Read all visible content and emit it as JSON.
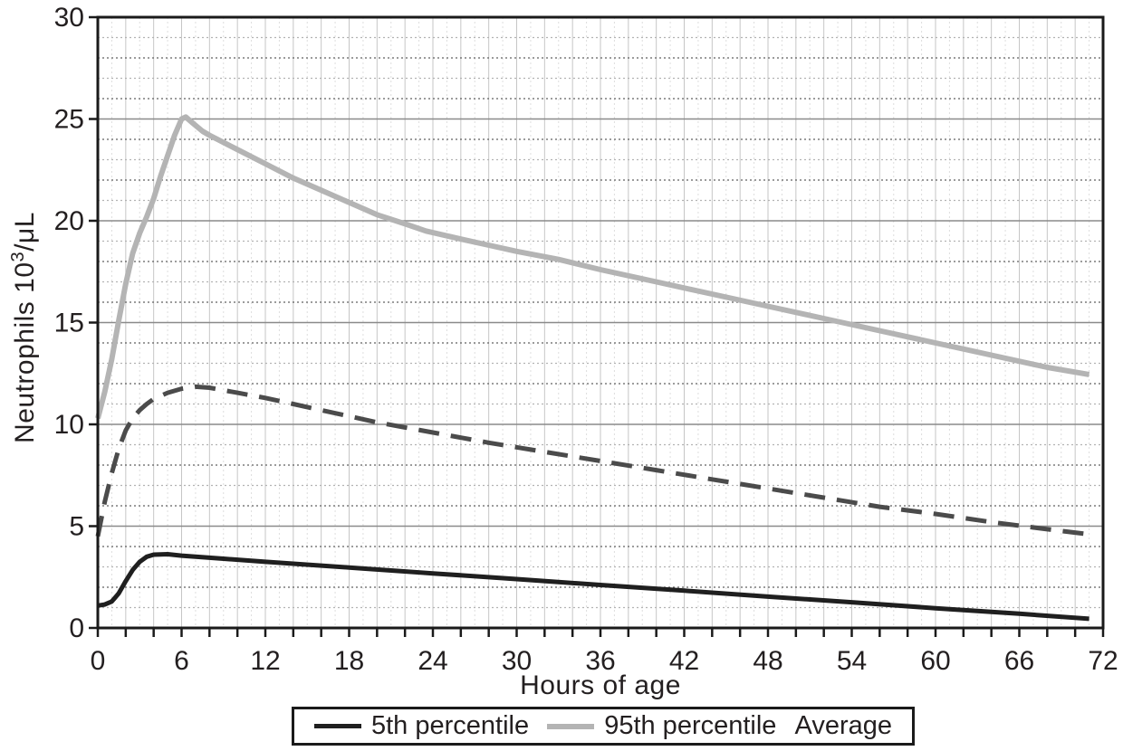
{
  "figure": {
    "background": "#ffffff"
  },
  "chart_data": {
    "type": "line",
    "title": "",
    "xlabel": "Hours of age",
    "ylabel": "Neutrophils 10³/μL",
    "ylabel_parts": {
      "prefix": "Neutrophils 10",
      "superscript": "3",
      "suffix": "/μL"
    },
    "xlim": [
      0,
      72
    ],
    "ylim": [
      0,
      30
    ],
    "x_tick_step": 2,
    "x_label_step": 6,
    "x_tick_labels": [
      "0",
      "6",
      "12",
      "18",
      "24",
      "30",
      "36",
      "42",
      "48",
      "54",
      "60",
      "66",
      "72"
    ],
    "y_tick_step": 5,
    "y_tick_labels": [
      "0",
      "5",
      "10",
      "15",
      "20",
      "25",
      "30"
    ],
    "grid": {
      "on": true,
      "major_color": "#8a8a8a",
      "minor_dark_color": "#606060",
      "minor_light_color": "#b3b3b3",
      "vertical_even_color": "#c6c6c6",
      "vertical_odd_color": "#dedede",
      "axis_color": "#1a1a1a"
    },
    "series": [
      {
        "name": "95th percentile",
        "color": "#b4b4b4",
        "style": "solid",
        "width": 6,
        "points": [
          [
            0,
            10.3
          ],
          [
            0.5,
            11.6
          ],
          [
            1,
            13.2
          ],
          [
            1.5,
            15.1
          ],
          [
            2,
            16.9
          ],
          [
            2.5,
            18.4
          ],
          [
            3,
            19.4
          ],
          [
            3.5,
            20.2
          ],
          [
            4,
            21.1
          ],
          [
            4.5,
            22.2
          ],
          [
            5,
            23.2
          ],
          [
            5.5,
            24.2
          ],
          [
            6,
            25.0
          ],
          [
            6.3,
            25.1
          ],
          [
            6.8,
            24.8
          ],
          [
            7.5,
            24.4
          ],
          [
            8,
            24.2
          ],
          [
            10,
            23.5
          ],
          [
            12,
            22.8
          ],
          [
            14,
            22.1
          ],
          [
            16,
            21.5
          ],
          [
            18,
            20.9
          ],
          [
            20,
            20.3
          ],
          [
            22,
            19.85
          ],
          [
            23.5,
            19.5
          ],
          [
            26,
            19.1
          ],
          [
            28,
            18.8
          ],
          [
            30,
            18.5
          ],
          [
            33,
            18.1
          ],
          [
            36,
            17.6
          ],
          [
            40,
            17.0
          ],
          [
            44,
            16.4
          ],
          [
            48,
            15.8
          ],
          [
            52,
            15.2
          ],
          [
            56,
            14.6
          ],
          [
            60,
            14.0
          ],
          [
            64,
            13.4
          ],
          [
            68,
            12.8
          ],
          [
            71,
            12.45
          ]
        ]
      },
      {
        "name": "Average",
        "color": "#4b4b4b",
        "style": "dashed",
        "width": 5,
        "points": [
          [
            0,
            4.5
          ],
          [
            0.5,
            6.2
          ],
          [
            1,
            7.6
          ],
          [
            1.5,
            8.8
          ],
          [
            2,
            9.7
          ],
          [
            2.5,
            10.3
          ],
          [
            3,
            10.7
          ],
          [
            3.5,
            11.0
          ],
          [
            4,
            11.25
          ],
          [
            5,
            11.55
          ],
          [
            6,
            11.75
          ],
          [
            7,
            11.85
          ],
          [
            8,
            11.8
          ],
          [
            10,
            11.55
          ],
          [
            12,
            11.3
          ],
          [
            14,
            11.0
          ],
          [
            16,
            10.7
          ],
          [
            18,
            10.4
          ],
          [
            20,
            10.1
          ],
          [
            22,
            9.85
          ],
          [
            24,
            9.6
          ],
          [
            28,
            9.1
          ],
          [
            32,
            8.65
          ],
          [
            36,
            8.2
          ],
          [
            40,
            7.75
          ],
          [
            44,
            7.3
          ],
          [
            48,
            6.85
          ],
          [
            52,
            6.4
          ],
          [
            56,
            5.95
          ],
          [
            60,
            5.6
          ],
          [
            64,
            5.2
          ],
          [
            68,
            4.85
          ],
          [
            71,
            4.6
          ]
        ]
      },
      {
        "name": "5th percentile",
        "color": "#1f1f1f",
        "style": "solid",
        "width": 5,
        "points": [
          [
            0,
            1.1
          ],
          [
            0.5,
            1.15
          ],
          [
            1,
            1.3
          ],
          [
            1.5,
            1.7
          ],
          [
            2,
            2.3
          ],
          [
            2.5,
            2.85
          ],
          [
            3,
            3.25
          ],
          [
            3.5,
            3.5
          ],
          [
            4,
            3.6
          ],
          [
            5,
            3.62
          ],
          [
            6,
            3.55
          ],
          [
            9,
            3.4
          ],
          [
            12,
            3.25
          ],
          [
            18,
            2.97
          ],
          [
            24,
            2.68
          ],
          [
            30,
            2.4
          ],
          [
            36,
            2.11
          ],
          [
            42,
            1.83
          ],
          [
            48,
            1.54
          ],
          [
            54,
            1.26
          ],
          [
            60,
            0.97
          ],
          [
            66,
            0.7
          ],
          [
            71,
            0.45
          ]
        ]
      }
    ],
    "legend": {
      "position": "bottom",
      "items": [
        {
          "label": "5th percentile",
          "swatch": "solid",
          "color": "#1f1f1f",
          "swatch_height": 5
        },
        {
          "label": "95th percentile",
          "swatch": "solid",
          "color": "#b4b4b4",
          "swatch_height": 6
        },
        {
          "label": "Average",
          "swatch": "none",
          "color": "#4b4b4b",
          "swatch_height": 0
        }
      ]
    }
  }
}
